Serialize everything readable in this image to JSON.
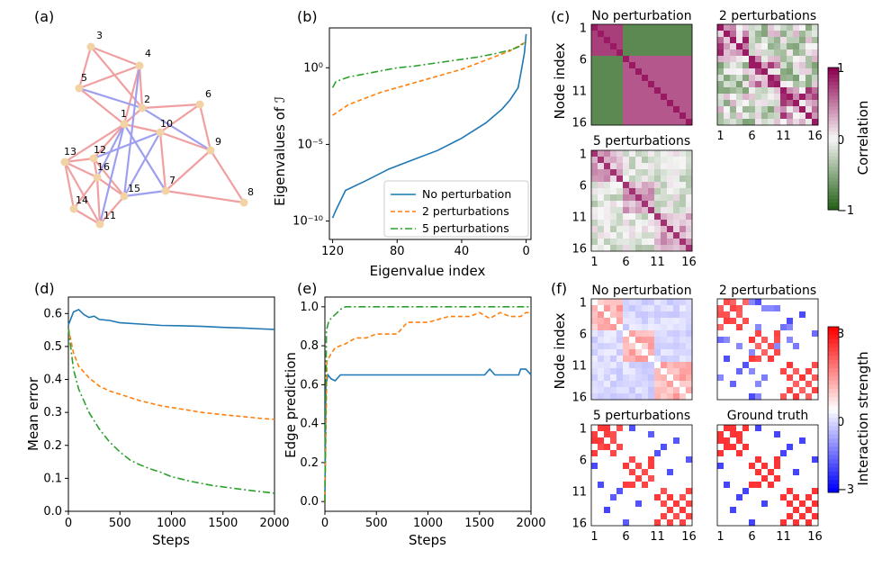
{
  "panel_labels": [
    "(a)",
    "(b)",
    "(c)",
    "(d)",
    "(e)",
    "(f)"
  ],
  "legend": [
    "No perturbation",
    "2 perturbations",
    "5 perturbations"
  ],
  "colors": {
    "blue": "#1f77b4",
    "orange": "#ff7f0e",
    "green": "#2ca02c",
    "edge_pos": "#f0a0a0",
    "edge_neg": "#9f9ff0",
    "node": "#f1d3a6"
  },
  "network": {
    "nodes": [
      "1",
      "2",
      "3",
      "4",
      "5",
      "6",
      "7",
      "8",
      "9",
      "10",
      "11",
      "12",
      "13",
      "14",
      "15",
      "16"
    ],
    "edges_pos": [
      [
        1,
        2
      ],
      [
        1,
        5
      ],
      [
        1,
        4
      ],
      [
        2,
        4
      ],
      [
        2,
        3
      ],
      [
        3,
        4
      ],
      [
        3,
        5
      ],
      [
        4,
        5
      ],
      [
        1,
        10
      ],
      [
        2,
        6
      ],
      [
        6,
        10
      ],
      [
        6,
        9
      ],
      [
        9,
        10
      ],
      [
        7,
        9
      ],
      [
        7,
        8
      ],
      [
        8,
        9
      ],
      [
        7,
        10
      ],
      [
        1,
        12
      ],
      [
        12,
        13
      ],
      [
        13,
        16
      ],
      [
        14,
        16
      ],
      [
        11,
        14
      ],
      [
        13,
        14
      ],
      [
        12,
        16
      ],
      [
        11,
        16
      ],
      [
        12,
        15
      ],
      [
        15,
        16
      ],
      [
        11,
        15
      ],
      [
        1,
        13
      ],
      [
        11,
        13
      ]
    ],
    "edges_neg": [
      [
        2,
        5
      ],
      [
        2,
        9
      ],
      [
        1,
        7
      ],
      [
        1,
        11
      ],
      [
        4,
        15
      ],
      [
        7,
        15
      ],
      [
        10,
        12
      ],
      [
        1,
        16
      ],
      [
        15,
        10
      ]
    ]
  },
  "chart_data": [
    {
      "panel": "(b)",
      "type": "line",
      "xlabel": "Eigenvalue index",
      "ylabel": "Eigenvalues of ℐ",
      "x_ticks": [
        "120",
        "80",
        "40",
        "0"
      ],
      "y_ticks": [
        "10⁻¹⁰",
        "10⁻⁵",
        "10⁰"
      ],
      "xlim": [
        122,
        -3
      ],
      "ylim_log10": [
        -11.2,
        2.6
      ],
      "series": [
        {
          "name": "No perturbation",
          "x": [
            120,
            118,
            112,
            100,
            85,
            70,
            55,
            40,
            25,
            15,
            10,
            5,
            3,
            1,
            0
          ],
          "log10_y": [
            -9.8,
            -9.3,
            -8.0,
            -7.4,
            -6.6,
            -6.0,
            -5.4,
            -4.6,
            -3.6,
            -2.7,
            -2.1,
            -1.3,
            -0.2,
            1.0,
            2.2
          ]
        },
        {
          "name": "2 perturbations",
          "x": [
            120,
            110,
            100,
            90,
            80,
            70,
            60,
            50,
            40,
            30,
            20,
            10,
            5,
            0
          ],
          "log10_y": [
            -3.1,
            -2.4,
            -2.0,
            -1.6,
            -1.3,
            -1.0,
            -0.7,
            -0.4,
            -0.1,
            0.3,
            0.7,
            1.1,
            1.4,
            1.7
          ]
        },
        {
          "name": "5 perturbations",
          "x": [
            120,
            118,
            110,
            100,
            90,
            80,
            70,
            60,
            50,
            40,
            30,
            20,
            10,
            5,
            0
          ],
          "log10_y": [
            -1.3,
            -0.9,
            -0.6,
            -0.4,
            -0.2,
            0.0,
            0.1,
            0.25,
            0.4,
            0.55,
            0.7,
            0.9,
            1.15,
            1.35,
            1.7
          ]
        }
      ]
    },
    {
      "panel": "(d)",
      "type": "line",
      "xlabel": "Steps",
      "ylabel": "Mean error",
      "x_ticks": [
        "0",
        "500",
        "1000",
        "1500",
        "2000"
      ],
      "y_ticks": [
        "0.0",
        "0.1",
        "0.2",
        "0.3",
        "0.4",
        "0.5",
        "0.6"
      ],
      "xlim": [
        0,
        2000
      ],
      "ylim": [
        0,
        0.65
      ],
      "series": [
        {
          "name": "No perturbation",
          "x": [
            0,
            50,
            100,
            150,
            200,
            250,
            300,
            400,
            500,
            700,
            900,
            1100,
            1300,
            1500,
            1700,
            1900,
            2000
          ],
          "values": [
            0.565,
            0.605,
            0.612,
            0.597,
            0.588,
            0.592,
            0.582,
            0.579,
            0.572,
            0.568,
            0.564,
            0.563,
            0.561,
            0.558,
            0.556,
            0.553,
            0.552
          ]
        },
        {
          "name": "2 perturbations",
          "x": [
            0,
            50,
            100,
            200,
            300,
            400,
            500,
            700,
            900,
            1100,
            1300,
            1500,
            1700,
            1900,
            2000
          ],
          "values": [
            0.555,
            0.48,
            0.44,
            0.405,
            0.38,
            0.365,
            0.355,
            0.335,
            0.32,
            0.31,
            0.3,
            0.293,
            0.287,
            0.281,
            0.279
          ]
        },
        {
          "name": "5 perturbations",
          "x": [
            0,
            50,
            100,
            200,
            300,
            400,
            500,
            600,
            700,
            800,
            900,
            1000,
            1200,
            1400,
            1600,
            1800,
            2000
          ],
          "values": [
            0.555,
            0.43,
            0.37,
            0.3,
            0.25,
            0.21,
            0.18,
            0.155,
            0.14,
            0.128,
            0.118,
            0.105,
            0.09,
            0.078,
            0.07,
            0.062,
            0.055
          ]
        }
      ]
    },
    {
      "panel": "(e)",
      "type": "line",
      "xlabel": "Steps",
      "ylabel": "Edge prediction",
      "x_ticks": [
        "0",
        "500",
        "1000",
        "1500",
        "2000"
      ],
      "y_ticks": [
        "0.0",
        "0.2",
        "0.4",
        "0.6",
        "0.8",
        "1.0"
      ],
      "xlim": [
        0,
        2000
      ],
      "ylim": [
        -0.05,
        1.05
      ],
      "series": [
        {
          "name": "No perturbation",
          "x": [
            0,
            10,
            30,
            60,
            100,
            150,
            200,
            500,
            1000,
            1500,
            1550,
            1600,
            1650,
            1880,
            1900,
            1950,
            2000
          ],
          "values": [
            0.0,
            0.6,
            0.65,
            0.63,
            0.62,
            0.65,
            0.65,
            0.65,
            0.65,
            0.65,
            0.65,
            0.68,
            0.65,
            0.65,
            0.68,
            0.68,
            0.65
          ]
        },
        {
          "name": "2 perturbations",
          "x": [
            0,
            20,
            50,
            100,
            200,
            300,
            400,
            500,
            700,
            800,
            1000,
            1200,
            1400,
            1500,
            1600,
            1700,
            1800,
            1900,
            1950,
            2000
          ],
          "values": [
            0.0,
            0.72,
            0.75,
            0.79,
            0.81,
            0.84,
            0.84,
            0.86,
            0.86,
            0.92,
            0.92,
            0.95,
            0.95,
            0.97,
            0.94,
            0.97,
            0.95,
            0.95,
            0.97,
            0.97
          ]
        },
        {
          "name": "5 perturbations",
          "x": [
            0,
            15,
            40,
            80,
            120,
            160,
            200,
            500,
            1000,
            1500,
            2000
          ],
          "values": [
            0.0,
            0.88,
            0.93,
            0.95,
            0.97,
            0.99,
            1.0,
            1.0,
            1.0,
            1.0,
            1.0
          ]
        }
      ]
    },
    {
      "panel": "(c)",
      "type": "heatmap",
      "ylabel": "Node index",
      "ticks": [
        "1",
        "6",
        "11",
        "16"
      ],
      "titles": [
        "No perturbation",
        "2 perturbations",
        "5 perturbations"
      ],
      "colorbar_label": "Correlation",
      "colorbar_ticks": [
        "1",
        "0",
        "−1"
      ],
      "range": [
        -1,
        1
      ]
    },
    {
      "panel": "(f)",
      "type": "heatmap",
      "ylabel": "Node index",
      "ticks": [
        "1",
        "6",
        "11",
        "16"
      ],
      "titles": [
        "No perturbation",
        "2 perturbations",
        "5 perturbations",
        "Ground truth"
      ],
      "colorbar_label": "Interaction strength",
      "colorbar_ticks": [
        "3",
        "0",
        "−3"
      ],
      "range": [
        -3,
        3
      ]
    }
  ]
}
